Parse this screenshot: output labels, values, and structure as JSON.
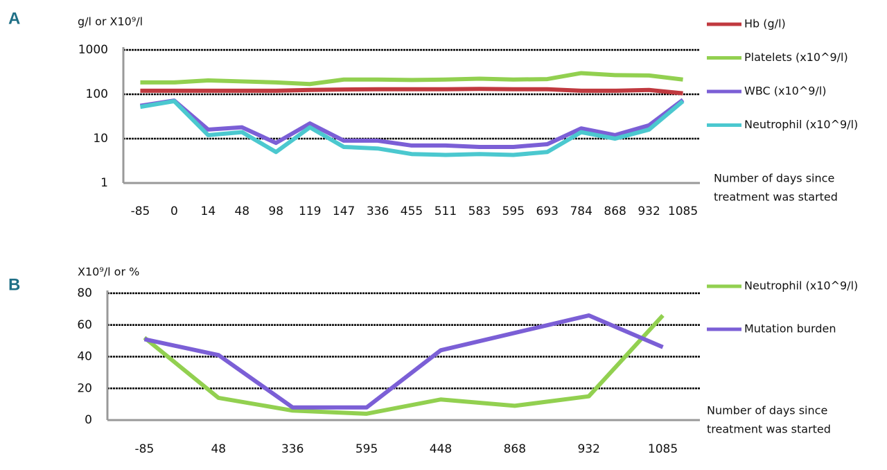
{
  "chart_data": [
    {
      "type": "line",
      "panel_label": "A",
      "ylabel": "g/l or X10⁹/l",
      "categories": [
        "-85",
        "0",
        "14",
        "48",
        "98",
        "119",
        "147",
        "336",
        "455",
        "511",
        "583",
        "595",
        "693",
        "784",
        "868",
        "932",
        "1085"
      ],
      "series": [
        {
          "name": "Hb (g/l)",
          "color": "#c0393f",
          "values": [
            120,
            120,
            120,
            120,
            120,
            125,
            128,
            130,
            130,
            130,
            132,
            130,
            130,
            120,
            120,
            125,
            105
          ]
        },
        {
          "name": "Platelets (x10^9/l)",
          "color": "#92d050",
          "values": [
            185,
            185,
            205,
            195,
            185,
            170,
            215,
            215,
            210,
            215,
            225,
            215,
            220,
            300,
            270,
            265,
            215
          ]
        },
        {
          "name": "WBC (x10^9/l)",
          "color": "#7b5fd6",
          "values": [
            55,
            72,
            16,
            18,
            8,
            22,
            9,
            9,
            7,
            7,
            6.5,
            6.5,
            7.5,
            17,
            12,
            20,
            75
          ]
        },
        {
          "name": "Neutrophil (x10^9/l)",
          "color": "#4bc8cf",
          "values": [
            52,
            70,
            12,
            14,
            5,
            18,
            6.5,
            6,
            4.5,
            4.3,
            4.5,
            4.3,
            5,
            14,
            10,
            16,
            70
          ]
        }
      ],
      "ylim": [
        1,
        1000
      ],
      "yticks": [
        1,
        10,
        100,
        1000
      ],
      "ylog": true,
      "grid": true,
      "legend": "right",
      "xlabel": [
        "Number of days since",
        "treatment was started"
      ]
    },
    {
      "type": "line",
      "panel_label": "B",
      "ylabel": "X10⁹/l or %",
      "categories": [
        "-85",
        "48",
        "336",
        "595",
        "448",
        "868",
        "932",
        "1085"
      ],
      "series": [
        {
          "name": "Neutrophil (x10^9/l)",
          "color": "#92d050",
          "values": [
            52,
            14,
            6,
            4,
            13,
            9,
            15,
            66
          ]
        },
        {
          "name": "Mutation burden",
          "color": "#7b5fd6",
          "values": [
            51,
            41,
            8,
            8,
            44,
            55,
            66,
            46
          ]
        }
      ],
      "ylim": [
        0,
        80
      ],
      "yticks": [
        0,
        20,
        40,
        60,
        80
      ],
      "ylog": false,
      "grid": true,
      "legend": "right",
      "xlabel": [
        "Number of days since",
        "treatment was started"
      ]
    }
  ]
}
